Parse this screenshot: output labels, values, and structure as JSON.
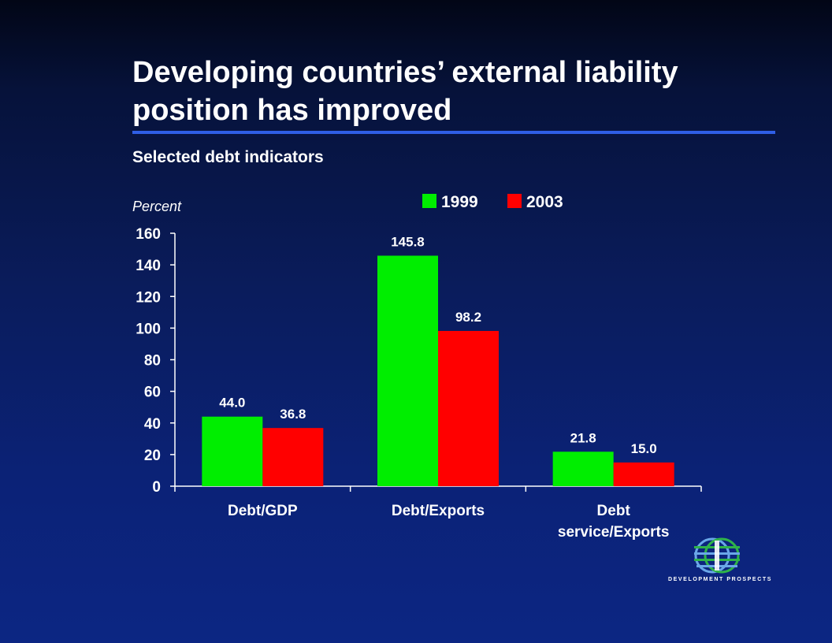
{
  "slide": {
    "title": "Developing countries’ external liability position has improved",
    "subtitle": "Selected debt indicators",
    "unit": "Percent",
    "logo_text": "DEVELOPMENT PROSPECTS"
  },
  "colors": {
    "series_1999": "#00ee00",
    "series_2003": "#ff0000",
    "rule": "#2f5ee6",
    "logo_green": "#2fb34a",
    "logo_blue": "#6aa7e8"
  },
  "chart_data": {
    "type": "bar",
    "title": "Selected debt indicators",
    "ylabel": "Percent",
    "xlabel": "",
    "ylim": [
      0,
      160
    ],
    "yticks": [
      0,
      20,
      40,
      60,
      80,
      100,
      120,
      140,
      160
    ],
    "ytick_labels": [
      "0",
      "20",
      "40",
      "60",
      "80",
      "100",
      "120",
      "140",
      "160"
    ],
    "categories": [
      {
        "lines": [
          "Debt/GDP"
        ]
      },
      {
        "lines": [
          "Debt/Exports"
        ]
      },
      {
        "lines": [
          "Debt",
          "service/Exports"
        ]
      }
    ],
    "series": [
      {
        "name": "1999",
        "values": [
          44.0,
          145.8,
          21.8
        ],
        "labels": [
          "44.0",
          "145.8",
          "21.8"
        ]
      },
      {
        "name": "2003",
        "values": [
          36.8,
          98.2,
          15.0
        ],
        "labels": [
          "36.8",
          "98.2",
          "15.0"
        ]
      }
    ],
    "legend_position": "top",
    "grid": false
  }
}
